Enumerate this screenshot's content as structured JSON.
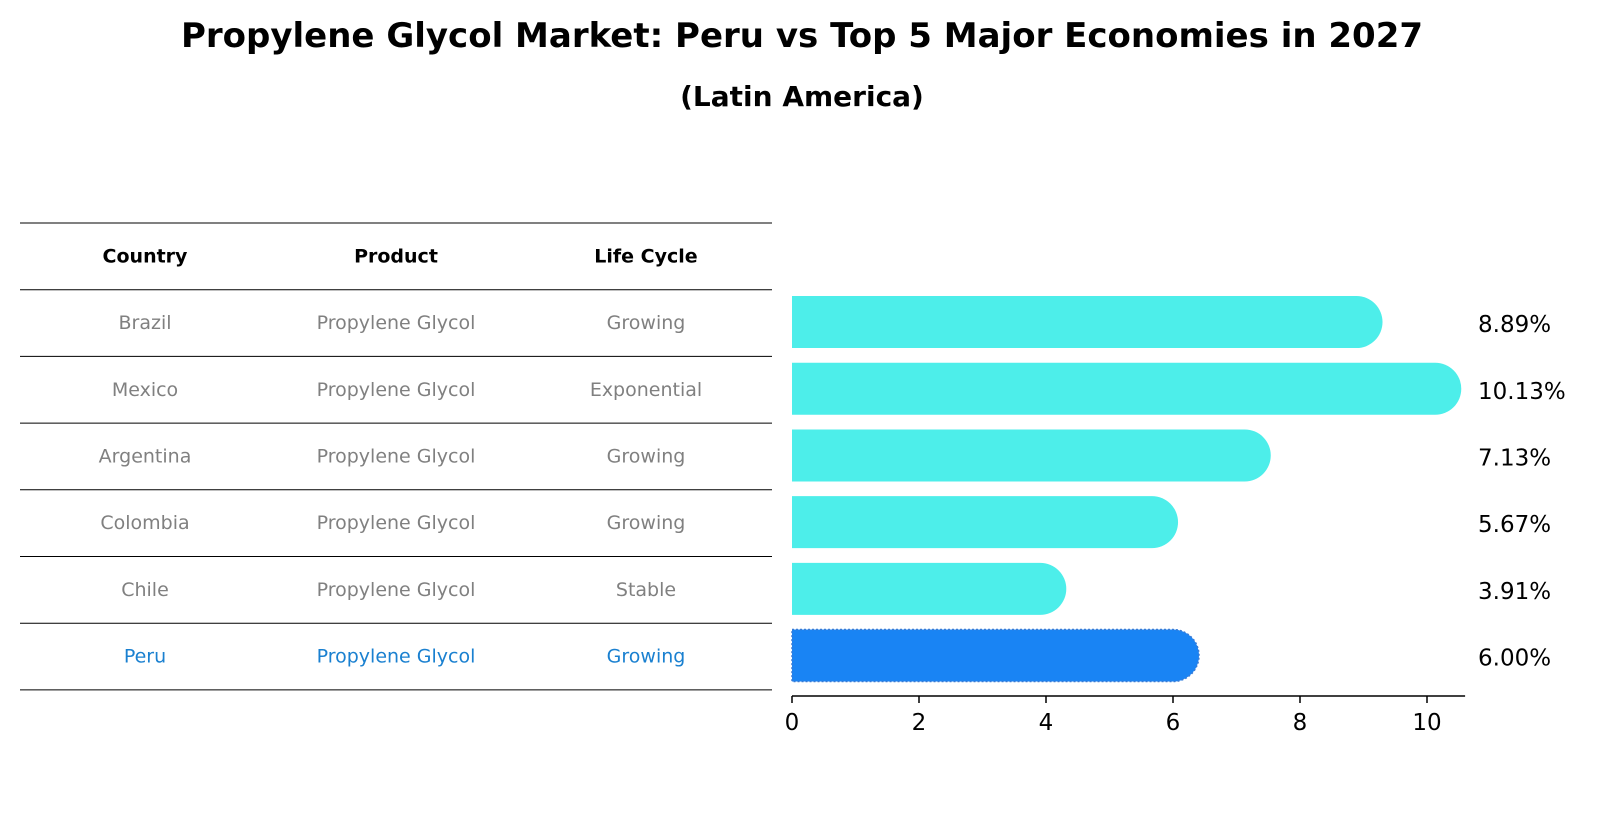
{
  "chart_data": {
    "type": "bar",
    "orientation": "horizontal",
    "title": "Propylene Glycol Market: Peru vs Top 5 Major Economies in 2027",
    "subtitle": "(Latin America)",
    "table": {
      "headers": [
        "Country",
        "Product",
        "Life Cycle"
      ],
      "rows": [
        [
          "Brazil",
          "Propylene Glycol",
          "Growing"
        ],
        [
          "Mexico",
          "Propylene Glycol",
          "Exponential"
        ],
        [
          "Argentina",
          "Propylene Glycol",
          "Growing"
        ],
        [
          "Colombia",
          "Propylene Glycol",
          "Growing"
        ],
        [
          "Chile",
          "Propylene Glycol",
          "Stable"
        ],
        [
          "Peru",
          "Propylene Glycol",
          "Growing"
        ]
      ]
    },
    "categories": [
      "Brazil",
      "Mexico",
      "Argentina",
      "Colombia",
      "Chile",
      "Peru"
    ],
    "values": [
      8.89,
      10.13,
      7.13,
      5.67,
      3.91,
      6.0
    ],
    "value_labels": [
      "8.89%",
      "10.13%",
      "7.13%",
      "5.67%",
      "3.91%",
      "6.00%"
    ],
    "highlight": "Peru",
    "xlim": [
      0,
      10.6
    ],
    "xticks": [
      0,
      2,
      4,
      6,
      8,
      10
    ],
    "xlabel": "",
    "ylabel": "",
    "grid": false,
    "colors": {
      "bar": "#4deeea",
      "highlight_bar": "#1984f4",
      "highlight_text": "#1a80d0",
      "table_text": "#808080",
      "header_text": "#000000",
      "rule": "#000000"
    }
  }
}
